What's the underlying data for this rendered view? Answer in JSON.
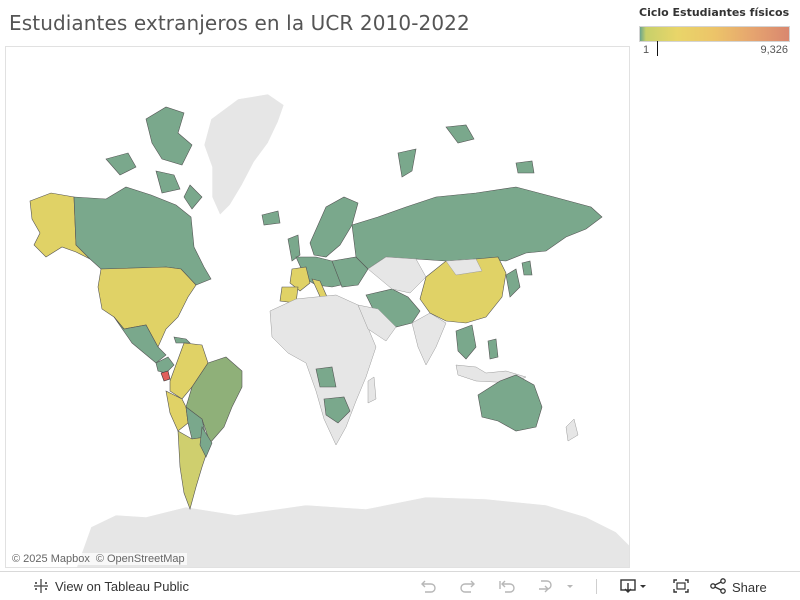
{
  "title": "Estudiantes extranjeros en la UCR 2010-2022",
  "legend": {
    "title": "Ciclo Estudiantes físicos",
    "min_label": "1",
    "max_label": "9,326",
    "min_value": 1,
    "max_value": 9326,
    "colors": [
      "#6aa58e",
      "#c7d06a",
      "#e9d569",
      "#ecc469",
      "#e6a56f",
      "#d9876f"
    ]
  },
  "attribution": {
    "mapbox": "© 2025 Mapbox",
    "osm": "© OpenStreetMap"
  },
  "map": {
    "no_data_color": "#e6e6e6",
    "low_color": "#7aa88c",
    "mid_color": "#e0d266",
    "high_color": "#e0605c",
    "highlighted_countries": [
      "Costa Rica"
    ]
  },
  "toolbar": {
    "view_label": "View on Tableau Public",
    "share_label": "Share",
    "icons": [
      "tableau-logo-icon",
      "undo-icon",
      "redo-icon",
      "revert-icon",
      "refresh-icon",
      "pause-dropdown-icon",
      "download-icon",
      "fullscreen-icon",
      "share-icon"
    ]
  }
}
